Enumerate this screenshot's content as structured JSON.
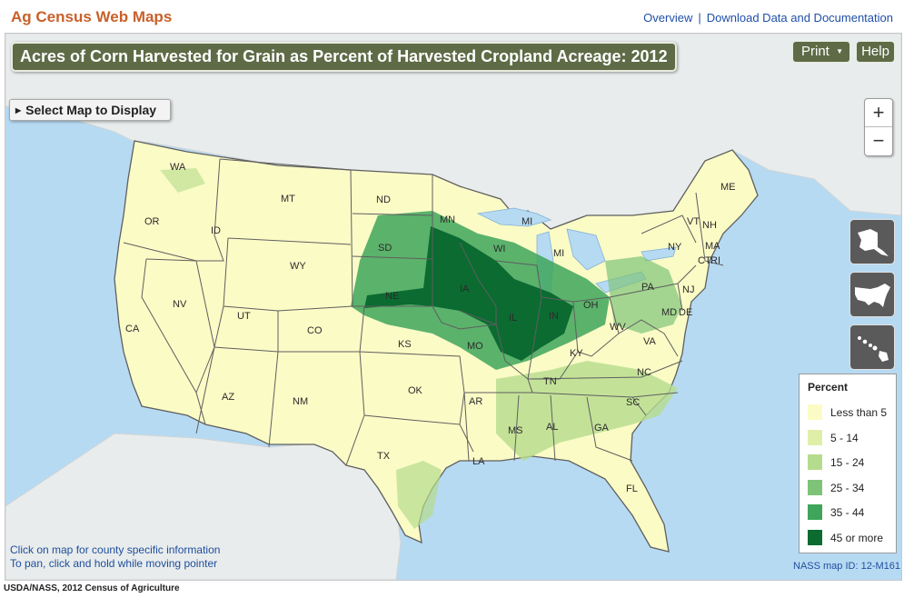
{
  "header": {
    "app_title": "Ag Census Web Maps",
    "links": [
      {
        "label": "Overview"
      },
      {
        "label": "Download Data and Documentation"
      }
    ]
  },
  "map": {
    "title": "Acres of Corn Harvested for Grain as Percent of Harvested Cropland Acreage: 2012",
    "print_label": "Print",
    "help_label": "Help",
    "select_label": "Select Map to Display",
    "zoom_in_label": "+",
    "zoom_out_label": "−",
    "insets": [
      "alaska-icon",
      "conterminous-us-icon",
      "hawaii-icon"
    ],
    "hint_lines": [
      "Click on map for county specific information",
      "To pan, click and hold while moving pointer"
    ],
    "map_id": "NASS map ID: 12-M161",
    "colors": {
      "water": "#b7daf3",
      "land_other": "#e8ecec",
      "border": "#5f5f5f"
    },
    "states": [
      "WA",
      "OR",
      "ID",
      "MT",
      "ND",
      "MN",
      "WI",
      "MI",
      "ME",
      "VT",
      "NH",
      "NY",
      "MA",
      "CT",
      "RI",
      "PA",
      "NJ",
      "OH",
      "IN",
      "IL",
      "IA",
      "SD",
      "NE",
      "WY",
      "NV",
      "CA",
      "UT",
      "CO",
      "KS",
      "MO",
      "KY",
      "WV",
      "VA",
      "MD",
      "DE",
      "NC",
      "TN",
      "AR",
      "OK",
      "NM",
      "AZ",
      "TX",
      "LA",
      "MS",
      "AL",
      "GA",
      "SC",
      "FL"
    ]
  },
  "legend": {
    "title": "Percent",
    "items": [
      {
        "label": "Less than 5",
        "color": "#fbfbc6"
      },
      {
        "label": "5 - 14",
        "color": "#e0efa8"
      },
      {
        "label": "15 - 24",
        "color": "#b5dc8c"
      },
      {
        "label": "25 - 34",
        "color": "#7dc479"
      },
      {
        "label": "35 - 44",
        "color": "#3ea55a"
      },
      {
        "label": "45 or more",
        "color": "#0b6b31"
      }
    ]
  },
  "footer": {
    "source": "USDA/NASS, 2012 Census of Agriculture"
  }
}
